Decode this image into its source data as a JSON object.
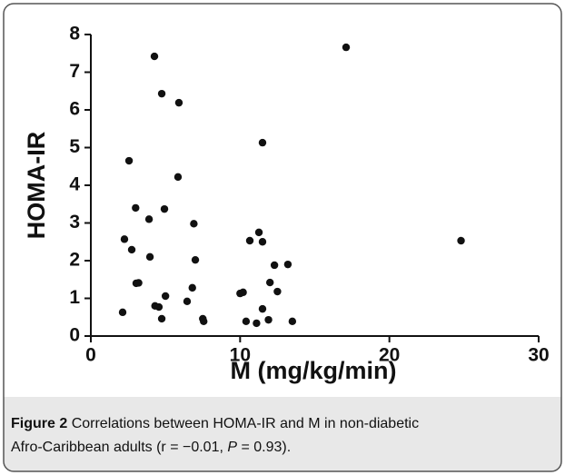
{
  "chart_data": {
    "type": "scatter",
    "x_label": "M (mg/kg/min)",
    "y_label": "HOMA-IR",
    "x": [
      2.56,
      4.26,
      4.75,
      5.9,
      11.5,
      17.1,
      24.8,
      5.84,
      3.0,
      4.93,
      3.9,
      6.9,
      11.26,
      2.25,
      2.74,
      3.96,
      7.0,
      10.65,
      11.5,
      12.3,
      13.2,
      3.04,
      3.2,
      6.8,
      12.0,
      12.5,
      5.0,
      10.0,
      10.2,
      4.3,
      4.56,
      6.45,
      11.5,
      2.13,
      4.75,
      7.5,
      7.56,
      10.4,
      11.1,
      11.9,
      13.5
    ],
    "values": [
      4.65,
      7.42,
      6.43,
      6.19,
      5.13,
      7.66,
      2.53,
      4.22,
      3.4,
      3.37,
      3.1,
      2.98,
      2.75,
      2.57,
      2.29,
      2.1,
      2.02,
      2.53,
      2.5,
      1.88,
      1.9,
      1.4,
      1.41,
      1.28,
      1.42,
      1.18,
      1.06,
      1.13,
      1.16,
      0.8,
      0.77,
      0.92,
      0.72,
      0.63,
      0.46,
      0.46,
      0.39,
      0.39,
      0.34,
      0.43,
      0.39
    ],
    "color": "#111111",
    "xlim": [
      0,
      30
    ],
    "xticks": [
      0,
      10,
      20,
      30
    ],
    "ylim": [
      0,
      8
    ],
    "yticks": [
      0,
      1,
      2,
      3,
      4,
      5,
      6,
      7,
      8
    ]
  },
  "caption": {
    "label": "Figure 2",
    "text": [
      "Correlations between HOMA-IR and M in non-diabetic",
      "Afro-Caribbean adults (r = −0.01, ",
      "P",
      " = 0.93)."
    ]
  }
}
